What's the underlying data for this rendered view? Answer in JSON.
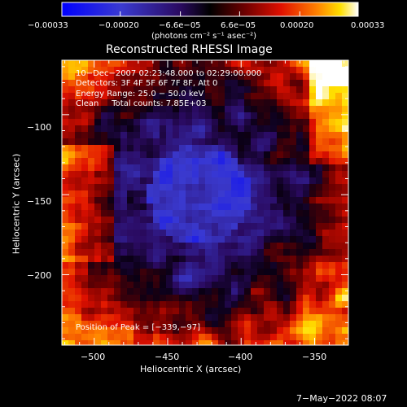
{
  "chart_data": {
    "type": "heatmap",
    "title": "Reconstructed RHESSI Image",
    "xlabel": "Heliocentric X (arcsec)",
    "ylabel": "Heliocentric Y (arcsec)",
    "xlim": [
      -522,
      -327
    ],
    "ylim": [
      -244,
      -66
    ],
    "x_ticks": [
      -500,
      -450,
      -400,
      -350
    ],
    "x_tick_labels": [
      "−500",
      "−450",
      "−400",
      "−350"
    ],
    "y_ticks": [
      -100,
      -150,
      -200
    ],
    "y_tick_labels": [
      "−100",
      "−150",
      "−200"
    ],
    "colorbar": {
      "range": [
        -0.00033,
        0.00033
      ],
      "top_tick_labels": [
        "−0.00033",
        "−0.00020",
        "−6.6e−05",
        "6.6e−05",
        "0.00020",
        "0.00033"
      ],
      "top_tick_values": [
        -0.00033,
        -0.0002,
        -6.6e-05,
        6.6e-05,
        0.0002,
        0.00033
      ],
      "unit_label": "(photons cm⁻² s⁻¹ asec⁻²)",
      "colors": [
        "#0000ff",
        "#4040c0",
        "#200060",
        "#000000",
        "#800000",
        "#e00000",
        "#ff8000",
        "#ffff00",
        "#ffffff"
      ]
    },
    "info_lines": [
      "10−Dec−2007 02:23:48.000 to 02:29:00.000",
      "Detectors: 3F 4F 5F 6F 7F 8F, Att 0",
      "Energy Range: 25.0 − 50.0 keV",
      "Clean     Total counts: 7.85E+03"
    ],
    "peak_label": "Position of Peak = [−339,−97]",
    "peak_position": [
      -339,
      -97
    ],
    "grid": false,
    "legend": "none"
  },
  "footer": {
    "date": "7−May−2022 08:07"
  }
}
